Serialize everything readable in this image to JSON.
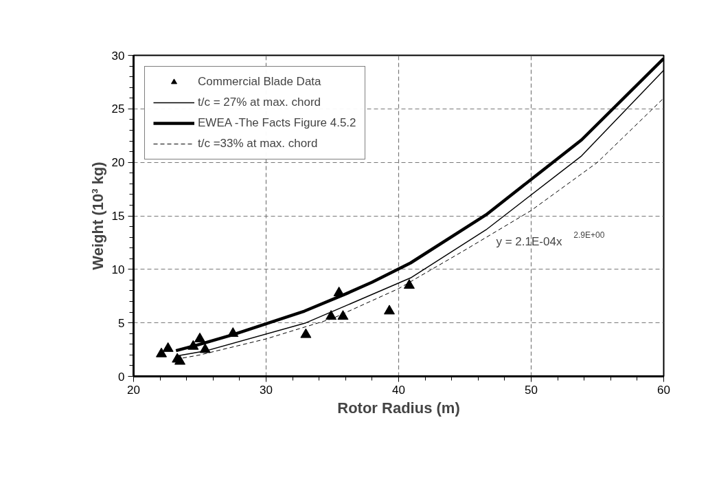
{
  "chart_data": {
    "type": "line",
    "xlabel": "Rotor Radius (m)",
    "ylabel": "Weight (10³ kg)",
    "xlim": [
      20,
      60
    ],
    "xticks": [
      20,
      30,
      40,
      50,
      60
    ],
    "ylim": [
      0,
      30
    ],
    "yticks": [
      0,
      5,
      10,
      15,
      20,
      25,
      30
    ],
    "grid": true,
    "legend": "top left",
    "annotations": [
      "y = 2.1E-04x$^{2.9E+00}$"
    ],
    "series": [
      {
        "name": "Commercial Blade Data",
        "type": "scatter",
        "marker": "triangle",
        "color": "#000000",
        "x": [
          22.1,
          22.6,
          23.3,
          23.5,
          24.5,
          25.0,
          25.4,
          27.5,
          33.0,
          34.9,
          35.5,
          35.8,
          39.3,
          40.8
        ],
        "values": [
          2.1,
          2.6,
          1.6,
          1.4,
          2.8,
          3.5,
          2.5,
          4.0,
          3.9,
          5.6,
          7.8,
          5.6,
          6.1,
          8.5
        ]
      },
      {
        "name": "t/c = 27% at max. chord",
        "color": "#000000",
        "line_style": "solid",
        "x": [
          23.2,
          25.5,
          33.0,
          40.9,
          46.6,
          53.8,
          60
        ],
        "values": [
          1.9,
          2.4,
          5.0,
          9.2,
          13.7,
          20.6,
          28.6
        ]
      },
      {
        "name": "EWEA -The Facts Figure 4.5.2",
        "color": "#000000",
        "line_style": "solid",
        "x": [
          23.2,
          25.0,
          27.5,
          32.9,
          36.0,
          38.0,
          40.9,
          46.6,
          53.8,
          60
        ],
        "values": [
          2.4,
          3.0,
          3.9,
          6.1,
          7.7,
          8.8,
          10.6,
          15.1,
          22.1,
          29.7
        ]
      },
      {
        "name": "t/c =33% at max. chord",
        "color": "#000000",
        "line_style": "dashed",
        "x": [
          23.2,
          25.0,
          30.0,
          35.0,
          40.0,
          45.0,
          50.0,
          55.0,
          60
        ],
        "values": [
          1.6,
          2.0,
          3.5,
          5.4,
          8.2,
          11.8,
          15.5,
          20.0,
          26.0
        ]
      }
    ]
  }
}
